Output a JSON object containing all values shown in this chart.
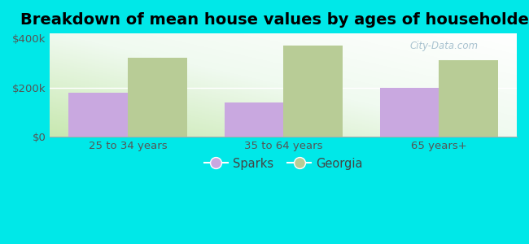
{
  "title": "Breakdown of mean house values by ages of householders",
  "categories": [
    "25 to 34 years",
    "35 to 64 years",
    "65 years+"
  ],
  "sparks_values": [
    180000,
    140000,
    200000
  ],
  "georgia_values": [
    320000,
    370000,
    310000
  ],
  "sparks_color": "#c9a8e0",
  "georgia_color": "#b8cc96",
  "background_color": "#00e8e8",
  "ylim": [
    0,
    420000
  ],
  "yticks": [
    0,
    200000,
    400000
  ],
  "ytick_labels": [
    "$0",
    "$200k",
    "$400k"
  ],
  "legend_labels": [
    "Sparks",
    "Georgia"
  ],
  "bar_width": 0.38,
  "title_fontsize": 14,
  "tick_fontsize": 9.5,
  "legend_fontsize": 10.5,
  "watermark": "City-Data.com"
}
